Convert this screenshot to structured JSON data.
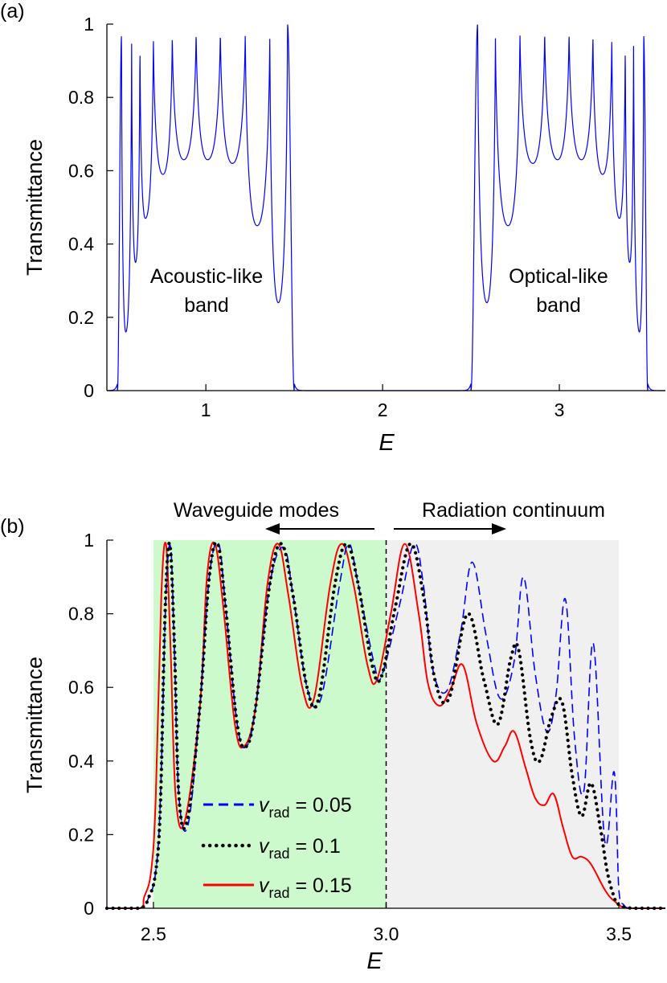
{
  "chart_data": [
    {
      "type": "line",
      "panel_label": "(a)",
      "xlabel": "E",
      "ylabel": "Transmittance",
      "xlim": [
        0.44,
        3.6
      ],
      "ylim": [
        0,
        1
      ],
      "xticks": [
        1,
        2,
        3
      ],
      "xtick_labels": [
        "1",
        "2",
        "3"
      ],
      "yticks": [
        0,
        0.2,
        0.4,
        0.6,
        0.8,
        1
      ],
      "ytick_labels": [
        "0",
        "0.2",
        "0.4",
        "0.6",
        "0.8",
        "1"
      ],
      "grid": false,
      "series": [
        {
          "color": "#0000ff",
          "bands": [
            {
              "range": [
                0.5,
                1.5
              ],
              "peaks": [
                0.523,
                0.58,
                0.627,
                0.703,
                0.81,
                0.945,
                1.082,
                1.223,
                1.362,
                1.462
              ],
              "peak_values": [
                0.97,
                0.98,
                0.98,
                0.98,
                0.98,
                0.99,
                0.99,
                0.99,
                0.99,
                1.0
              ],
              "dips": [
                0.547,
                0.602,
                0.658,
                0.757,
                0.875,
                1.01,
                1.15,
                1.29,
                1.41
              ],
              "dip_values": [
                0.16,
                0.35,
                0.47,
                0.59,
                0.63,
                0.63,
                0.62,
                0.45,
                0.24
              ]
            },
            {
              "range": [
                2.5,
                3.5
              ],
              "peaks": [
                2.538,
                2.638,
                2.777,
                2.917,
                3.055,
                3.19,
                3.297,
                3.373,
                3.42,
                3.477
              ],
              "peak_values": [
                1.0,
                0.99,
                0.99,
                0.99,
                0.99,
                0.98,
                0.98,
                0.98,
                0.98,
                0.97
              ],
              "dips": [
                2.59,
                2.71,
                2.85,
                2.99,
                3.125,
                3.245,
                3.34,
                3.398,
                3.453
              ],
              "dip_values": [
                0.24,
                0.45,
                0.62,
                0.63,
                0.63,
                0.59,
                0.47,
                0.35,
                0.16
              ]
            }
          ]
        }
      ],
      "annotations": [
        {
          "lines": [
            "Acoustic-like",
            "band"
          ],
          "x": 1.0,
          "y": 0.3
        },
        {
          "lines": [
            "Optical-like",
            "band"
          ],
          "x": 3.0,
          "y": 0.3
        }
      ]
    },
    {
      "type": "line",
      "panel_label": "(b)",
      "xlabel": "E",
      "ylabel": "Transmittance",
      "xlim": [
        2.4,
        3.6
      ],
      "ylim": [
        0,
        1
      ],
      "xticks": [
        2.5,
        3.0,
        3.5
      ],
      "xtick_labels": [
        "2.5",
        "3.0",
        "3.5"
      ],
      "yticks": [
        0,
        0.2,
        0.4,
        0.6,
        0.8,
        1
      ],
      "ytick_labels": [
        "0",
        "0.2",
        "0.4",
        "0.6",
        "0.8",
        "1"
      ],
      "grid": false,
      "regions": [
        {
          "x": [
            2.5,
            3.0
          ],
          "color": "#ccfacc",
          "label": "Waveguide modes",
          "arrow": "left"
        },
        {
          "x": [
            3.0,
            3.5
          ],
          "color": "#f0f0f0",
          "label": "Radiation continuum",
          "arrow": "right"
        }
      ],
      "divider_x": 3.0,
      "legend_position": "lower-center",
      "series": [
        {
          "name_main": "v",
          "name_sub": "rad",
          "name_value": " = 0.05",
          "color": "#0000ff",
          "dash": "dashed",
          "x": [
            2.4,
            2.47,
            2.49,
            2.505,
            2.515,
            2.527,
            2.537,
            2.545,
            2.555,
            2.575,
            2.6,
            2.62,
            2.64,
            2.655,
            2.68,
            2.7,
            2.72,
            2.75,
            2.78,
            2.8,
            2.83,
            2.86,
            2.9,
            2.92,
            2.94,
            2.975,
            2.99,
            3.03,
            3.06,
            3.08,
            3.1,
            3.13,
            3.16,
            3.185,
            3.215,
            3.245,
            3.275,
            3.295,
            3.32,
            3.345,
            3.365,
            3.385,
            3.405,
            3.425,
            3.445,
            3.47,
            3.49,
            3.5,
            3.51,
            3.53,
            3.6
          ],
          "y": [
            0.0,
            0.0,
            0.03,
            0.1,
            0.3,
            0.85,
            0.98,
            0.7,
            0.3,
            0.23,
            0.55,
            0.9,
            0.99,
            0.82,
            0.5,
            0.44,
            0.55,
            0.88,
            0.98,
            0.85,
            0.6,
            0.57,
            0.88,
            0.99,
            0.88,
            0.66,
            0.63,
            0.83,
            0.99,
            0.88,
            0.65,
            0.59,
            0.75,
            0.94,
            0.74,
            0.57,
            0.67,
            0.9,
            0.64,
            0.48,
            0.58,
            0.84,
            0.46,
            0.32,
            0.72,
            0.18,
            0.37,
            0.05,
            0.01,
            0.0,
            0.0
          ]
        },
        {
          "name_main": "v",
          "name_sub": "rad",
          "name_value": " = 0.1",
          "color": "#000000",
          "dash": "dotted",
          "x": [
            2.4,
            2.47,
            2.49,
            2.505,
            2.515,
            2.525,
            2.535,
            2.545,
            2.555,
            2.573,
            2.6,
            2.62,
            2.638,
            2.655,
            2.68,
            2.7,
            2.72,
            2.75,
            2.775,
            2.8,
            2.83,
            2.855,
            2.89,
            2.915,
            2.94,
            2.97,
            2.99,
            3.02,
            3.052,
            3.08,
            3.105,
            3.135,
            3.175,
            3.21,
            3.24,
            3.268,
            3.285,
            3.31,
            3.33,
            3.355,
            3.378,
            3.4,
            3.42,
            3.44,
            3.46,
            3.475,
            3.49,
            3.5,
            3.53,
            3.6
          ],
          "y": [
            0.0,
            0.0,
            0.03,
            0.1,
            0.28,
            0.8,
            0.99,
            0.72,
            0.3,
            0.24,
            0.55,
            0.9,
            0.99,
            0.82,
            0.5,
            0.44,
            0.55,
            0.88,
            0.99,
            0.85,
            0.6,
            0.57,
            0.88,
            0.99,
            0.88,
            0.66,
            0.63,
            0.82,
            0.99,
            0.85,
            0.62,
            0.57,
            0.8,
            0.62,
            0.5,
            0.68,
            0.7,
            0.46,
            0.4,
            0.52,
            0.56,
            0.36,
            0.25,
            0.34,
            0.22,
            0.1,
            0.03,
            0.01,
            0.0,
            0.0
          ]
        },
        {
          "name_main": "v",
          "name_sub": "rad",
          "name_value": " = 0.15",
          "color": "#ff0000",
          "dash": "solid",
          "x": [
            2.4,
            2.47,
            2.48,
            2.495,
            2.505,
            2.517,
            2.527,
            2.537,
            2.548,
            2.568,
            2.6,
            2.615,
            2.632,
            2.65,
            2.675,
            2.695,
            2.72,
            2.745,
            2.768,
            2.79,
            2.82,
            2.845,
            2.88,
            2.905,
            2.93,
            2.96,
            2.98,
            3.01,
            3.04,
            3.07,
            3.09,
            3.115,
            3.14,
            3.165,
            3.195,
            3.23,
            3.255,
            3.275,
            3.3,
            3.32,
            3.34,
            3.36,
            3.38,
            3.4,
            3.42,
            3.44,
            3.47,
            3.49,
            3.52,
            3.6
          ],
          "y": [
            0.0,
            0.0,
            0.03,
            0.1,
            0.3,
            0.85,
            0.99,
            0.7,
            0.3,
            0.24,
            0.55,
            0.9,
            0.99,
            0.82,
            0.5,
            0.44,
            0.55,
            0.88,
            0.99,
            0.85,
            0.6,
            0.57,
            0.88,
            0.99,
            0.88,
            0.66,
            0.62,
            0.8,
            0.99,
            0.8,
            0.61,
            0.55,
            0.6,
            0.66,
            0.5,
            0.4,
            0.44,
            0.48,
            0.38,
            0.3,
            0.28,
            0.31,
            0.22,
            0.14,
            0.14,
            0.12,
            0.05,
            0.02,
            0.0,
            0.0
          ]
        }
      ],
      "annotations": [
        {
          "text": "Waveguide modes"
        },
        {
          "text": "Radiation continuum"
        }
      ]
    }
  ]
}
